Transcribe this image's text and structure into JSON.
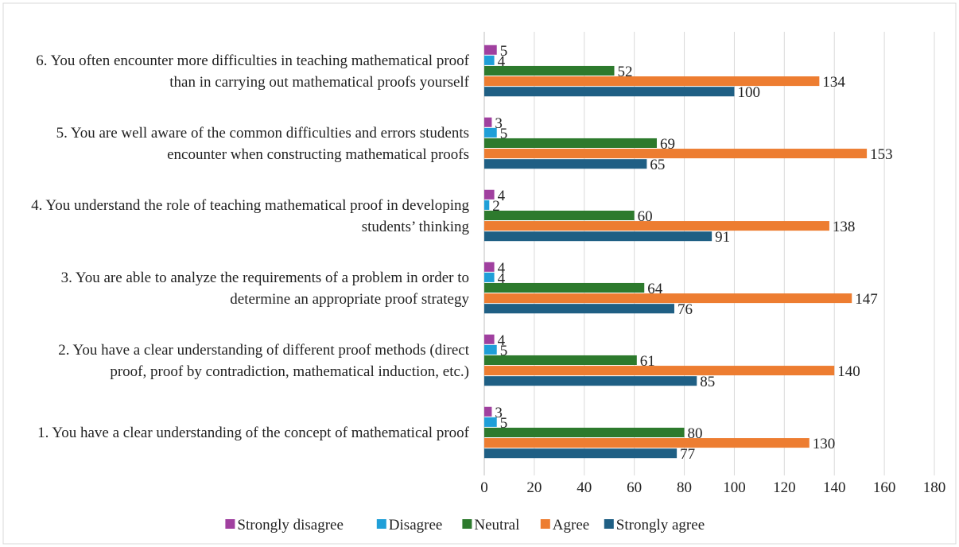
{
  "chart_data": {
    "type": "bar",
    "orientation": "horizontal",
    "categories": [
      "1. You have a clear understanding of the concept of mathematical proof",
      "2. You have a clear understanding of different proof methods (direct proof, proof by contradiction, mathematical induction, etc.)",
      "3. You are able to analyze the requirements of a problem in order to determine an appropriate proof strategy",
      "4. You understand the role of teaching mathematical proof in developing students’ thinking",
      "5. You are well aware of the common difficulties and errors students encounter when constructing mathematical proofs",
      "6. You often encounter more difficulties in teaching mathematical proof than in carrying out mathematical proofs yourself"
    ],
    "series": [
      {
        "name": "Strongly disagree",
        "color": "#a0409f",
        "values": [
          3,
          4,
          4,
          4,
          3,
          5
        ]
      },
      {
        "name": "Disagree",
        "color": "#1f9fd8",
        "values": [
          5,
          5,
          4,
          2,
          5,
          4
        ]
      },
      {
        "name": "Neutral",
        "color": "#2d7a2d",
        "values": [
          80,
          61,
          64,
          60,
          69,
          52
        ]
      },
      {
        "name": "Agree",
        "color": "#ed7d31",
        "values": [
          130,
          140,
          147,
          138,
          153,
          134
        ]
      },
      {
        "name": "Strongly agree",
        "color": "#1f5f84",
        "values": [
          77,
          85,
          76,
          91,
          65,
          100
        ]
      }
    ],
    "xlim": [
      0,
      180
    ],
    "xticks": [
      0,
      20,
      40,
      60,
      80,
      100,
      120,
      140,
      160,
      180
    ],
    "grid": true,
    "legend": "bottom"
  }
}
